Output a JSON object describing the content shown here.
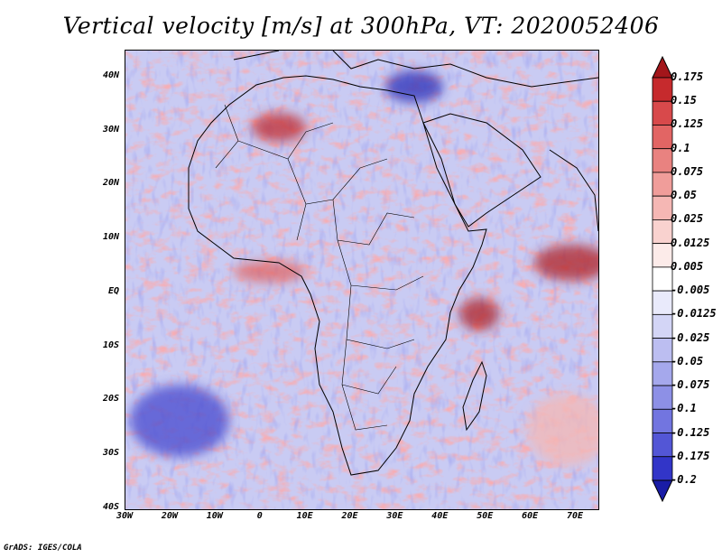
{
  "title": "Vertical velocity [m/s] at 300hPa, VT: 2020052406",
  "credit": "GrADS: IGES/COLA",
  "map": {
    "lat_labels": [
      "40N",
      "30N",
      "20N",
      "10N",
      "EQ",
      "10S",
      "20S",
      "30S",
      "40S"
    ],
    "lon_labels": [
      "30W",
      "20W",
      "10W",
      "0",
      "10E",
      "20E",
      "30E",
      "40E",
      "50E",
      "60E",
      "70E"
    ],
    "lat_range": [
      -40,
      45
    ],
    "lon_range": [
      -30,
      75
    ]
  },
  "colorbar": {
    "labels": [
      "0.175",
      "0.15",
      "0.125",
      "0.1",
      "0.075",
      "0.05",
      "0.025",
      "0.0125",
      "0.005",
      "-0.005",
      "-0.0125",
      "-0.025",
      "-0.05",
      "-0.075",
      "-0.1",
      "-0.125",
      "-0.175",
      "-0.2"
    ],
    "colors": [
      "#a3161b",
      "#c62a2d",
      "#d8494b",
      "#e26564",
      "#e98280",
      "#f09d9a",
      "#f5b7b4",
      "#f9d2cf",
      "#fcebe9",
      "#ffffff",
      "#e9eafb",
      "#d3d5f6",
      "#bcbef1",
      "#a5a8ec",
      "#8d90e6",
      "#7275e0",
      "#5356d6",
      "#3235c8",
      "#191ca6"
    ]
  }
}
